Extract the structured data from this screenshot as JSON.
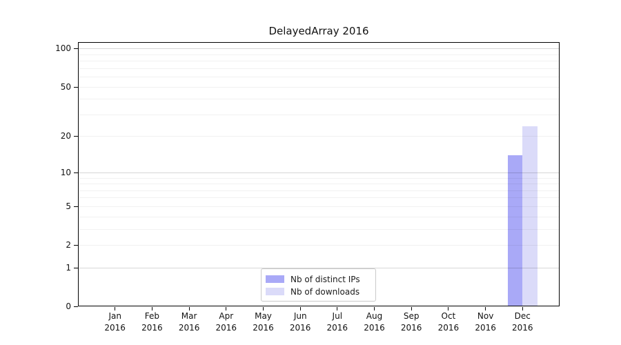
{
  "chart_data": {
    "type": "bar",
    "title": "DelayedArray 2016",
    "months": [
      "Jan",
      "Feb",
      "Mar",
      "Apr",
      "May",
      "Jun",
      "Jul",
      "Aug",
      "Sep",
      "Oct",
      "Nov",
      "Dec"
    ],
    "year_label": "2016",
    "series": [
      {
        "name": "Nb of distinct IPs",
        "color": "#a9a9f7",
        "values": [
          0,
          0,
          0,
          0,
          0,
          0,
          0,
          0,
          0,
          0,
          0,
          14
        ]
      },
      {
        "name": "Nb of downloads",
        "color": "#dbdbf9",
        "values": [
          0,
          0,
          0,
          0,
          0,
          0,
          0,
          0,
          0,
          0,
          0,
          24
        ]
      }
    ],
    "y_scale": "log10(1+x)",
    "y_tick_values": [
      0,
      1,
      2,
      5,
      10,
      20,
      50,
      100
    ],
    "y_major_gridlines": [
      1,
      10,
      100
    ],
    "y_minor_gridlines": [
      2,
      3,
      4,
      5,
      6,
      7,
      8,
      9,
      20,
      30,
      40,
      50,
      60,
      70,
      80,
      90
    ],
    "ylim": [
      0,
      112
    ],
    "xlabel": "",
    "ylabel": "",
    "grid": "horizontal",
    "legend_position": "lower center",
    "colors": {
      "axis": "#000000",
      "background": "#ffffff",
      "grid_major": "rgba(0,0,0,0.16)",
      "grid_minor": "rgba(0,0,0,0.055)"
    }
  }
}
